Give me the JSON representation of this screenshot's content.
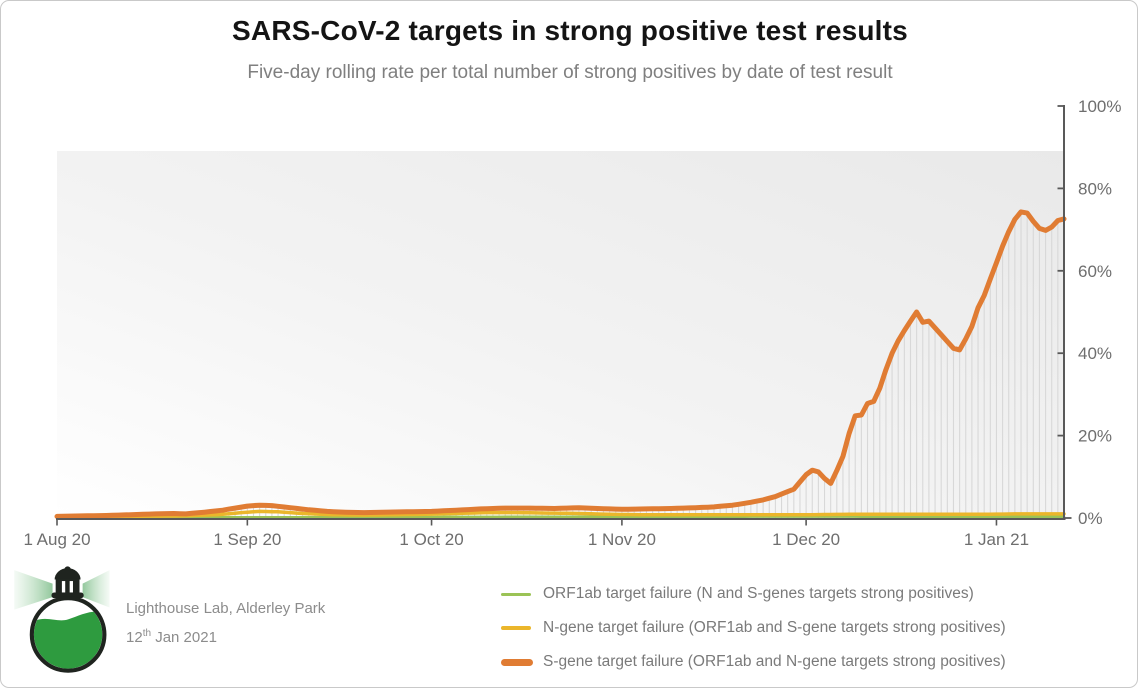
{
  "title": "SARS-CoV-2 targets in strong positive test results",
  "subtitle": "Five-day rolling rate per total number of strong positives by date of test result",
  "footer": {
    "org": "Lighthouse Lab, Alderley Park",
    "date_day": "12",
    "date_sup": "th",
    "date_rest": " Jan 2021"
  },
  "legend": [
    {
      "label": "ORF1ab target failure (N and S-genes targets strong positives)",
      "color": "#9bc356",
      "thickness": 3,
      "swatch_width": 30
    },
    {
      "label": "N-gene target failure (ORF1ab and S-gene targets strong positives)",
      "color": "#ebb62b",
      "thickness": 4,
      "swatch_width": 30
    },
    {
      "label": "S-gene target failure (ORF1ab and N-gene targets strong positives)",
      "color": "#e07c33",
      "thickness": 7,
      "swatch_width": 32
    }
  ],
  "colors": {
    "axis": "#595959",
    "tick_label": "#6e6e6e",
    "needle": "#d8d8d8",
    "frame_border": "#c9c9c9",
    "title": "#141414",
    "subtitle": "#7f7f7f",
    "logo_green": "#2e9b3f",
    "logo_dark": "#1f241f",
    "plot_bg_from": "#e9e9e9",
    "plot_bg_to": "#ffffff"
  },
  "chart_data": {
    "type": "line",
    "title": "SARS-CoV-2 targets in strong positive test results",
    "subtitle": "Five-day rolling rate per total number of strong positives by date of test result",
    "x_axis": {
      "unit": "date",
      "range_days": 164,
      "start": "1 Aug 20",
      "end": "12 Jan 21",
      "ticks": [
        {
          "label": "1 Aug 20",
          "day": 0
        },
        {
          "label": "1 Sep 20",
          "day": 31
        },
        {
          "label": "1 Oct 20",
          "day": 61
        },
        {
          "label": "1 Nov 20",
          "day": 92
        },
        {
          "label": "1 Dec 20",
          "day": 122
        },
        {
          "label": "1 Jan 21",
          "day": 153
        }
      ]
    },
    "y_axis": {
      "min": 0,
      "max": 100,
      "side": "right",
      "grid": false,
      "ticks": [
        {
          "label": "0%",
          "value": 0
        },
        {
          "label": "20%",
          "value": 20
        },
        {
          "label": "40%",
          "value": 40
        },
        {
          "label": "60%",
          "value": 60
        },
        {
          "label": "80%",
          "value": 80
        },
        {
          "label": "100%",
          "value": 100
        }
      ]
    },
    "needles": {
      "enabled": true,
      "color": "#d8d8d8",
      "follow_series": "S-gene target failure",
      "spacing_days": 1
    },
    "legend_position": "bottom",
    "series": [
      {
        "name": "ORF1ab target failure (N and S-genes targets strong positives)",
        "color": "#9bc356",
        "width": 2.5,
        "points": [
          [
            0,
            0.1
          ],
          [
            20,
            0.15
          ],
          [
            40,
            0.2
          ],
          [
            61,
            0.25
          ],
          [
            80,
            0.3
          ],
          [
            100,
            0.3
          ],
          [
            122,
            0.35
          ],
          [
            140,
            0.3
          ],
          [
            155,
            0.3
          ],
          [
            164,
            0.3
          ]
        ]
      },
      {
        "name": "N-gene target failure (ORF1ab and S-gene targets strong positives)",
        "color": "#ebb62b",
        "width": 3.5,
        "points": [
          [
            0,
            0.3
          ],
          [
            10,
            0.4
          ],
          [
            20,
            0.5
          ],
          [
            26,
            0.8
          ],
          [
            30,
            1.3
          ],
          [
            33,
            1.6
          ],
          [
            36,
            1.5
          ],
          [
            40,
            1.1
          ],
          [
            45,
            0.8
          ],
          [
            50,
            0.7
          ],
          [
            55,
            0.8
          ],
          [
            60,
            0.9
          ],
          [
            65,
            1.1
          ],
          [
            70,
            1.3
          ],
          [
            75,
            1.3
          ],
          [
            80,
            1.2
          ],
          [
            85,
            1.1
          ],
          [
            90,
            0.9
          ],
          [
            95,
            0.8
          ],
          [
            105,
            0.8
          ],
          [
            115,
            0.8
          ],
          [
            122,
            0.8
          ],
          [
            130,
            0.9
          ],
          [
            140,
            0.9
          ],
          [
            150,
            0.9
          ],
          [
            157,
            1.0
          ],
          [
            164,
            1.0
          ]
        ]
      },
      {
        "name": "S-gene target failure (ORF1ab and N-gene targets strong positives)",
        "color": "#e07c33",
        "width": 5,
        "points": [
          [
            0,
            0.4
          ],
          [
            4,
            0.5
          ],
          [
            8,
            0.6
          ],
          [
            12,
            0.8
          ],
          [
            16,
            1.0
          ],
          [
            19,
            1.1
          ],
          [
            21,
            1.0
          ],
          [
            24,
            1.4
          ],
          [
            27,
            1.9
          ],
          [
            29,
            2.4
          ],
          [
            31,
            2.9
          ],
          [
            33,
            3.1
          ],
          [
            35,
            3.0
          ],
          [
            38,
            2.5
          ],
          [
            41,
            2.0
          ],
          [
            44,
            1.6
          ],
          [
            47,
            1.4
          ],
          [
            50,
            1.3
          ],
          [
            53,
            1.4
          ],
          [
            57,
            1.5
          ],
          [
            61,
            1.6
          ],
          [
            65,
            1.9
          ],
          [
            69,
            2.2
          ],
          [
            73,
            2.4
          ],
          [
            77,
            2.4
          ],
          [
            81,
            2.3
          ],
          [
            85,
            2.5
          ],
          [
            88,
            2.3
          ],
          [
            92,
            2.1
          ],
          [
            96,
            2.2
          ],
          [
            100,
            2.3
          ],
          [
            104,
            2.5
          ],
          [
            107,
            2.7
          ],
          [
            110,
            3.1
          ],
          [
            113,
            3.8
          ],
          [
            115,
            4.4
          ],
          [
            117,
            5.2
          ],
          [
            119,
            6.4
          ],
          [
            120,
            7.0
          ],
          [
            122,
            10.5
          ],
          [
            123,
            11.6
          ],
          [
            124,
            11.2
          ],
          [
            125,
            9.6
          ],
          [
            126,
            8.4
          ],
          [
            127,
            11.5
          ],
          [
            128,
            15.0
          ],
          [
            129,
            20.5
          ],
          [
            130,
            24.8
          ],
          [
            131,
            25.0
          ],
          [
            132,
            27.8
          ],
          [
            133,
            28.3
          ],
          [
            134,
            31.5
          ],
          [
            135,
            36.0
          ],
          [
            136,
            40.0
          ],
          [
            137,
            43.0
          ],
          [
            138,
            45.5
          ],
          [
            139,
            47.8
          ],
          [
            140,
            50.0
          ],
          [
            141,
            47.5
          ],
          [
            142,
            47.8
          ],
          [
            144,
            44.5
          ],
          [
            146,
            41.2
          ],
          [
            147,
            40.8
          ],
          [
            148,
            43.5
          ],
          [
            149,
            46.5
          ],
          [
            150,
            51.0
          ],
          [
            151,
            54.0
          ],
          [
            152,
            58.0
          ],
          [
            153,
            62.0
          ],
          [
            154,
            66.0
          ],
          [
            155,
            69.5
          ],
          [
            156,
            72.5
          ],
          [
            157,
            74.3
          ],
          [
            158,
            74.0
          ],
          [
            159,
            72.0
          ],
          [
            160,
            70.3
          ],
          [
            161,
            69.8
          ],
          [
            162,
            70.6
          ],
          [
            163,
            72.2
          ],
          [
            164,
            72.6
          ]
        ]
      }
    ]
  }
}
